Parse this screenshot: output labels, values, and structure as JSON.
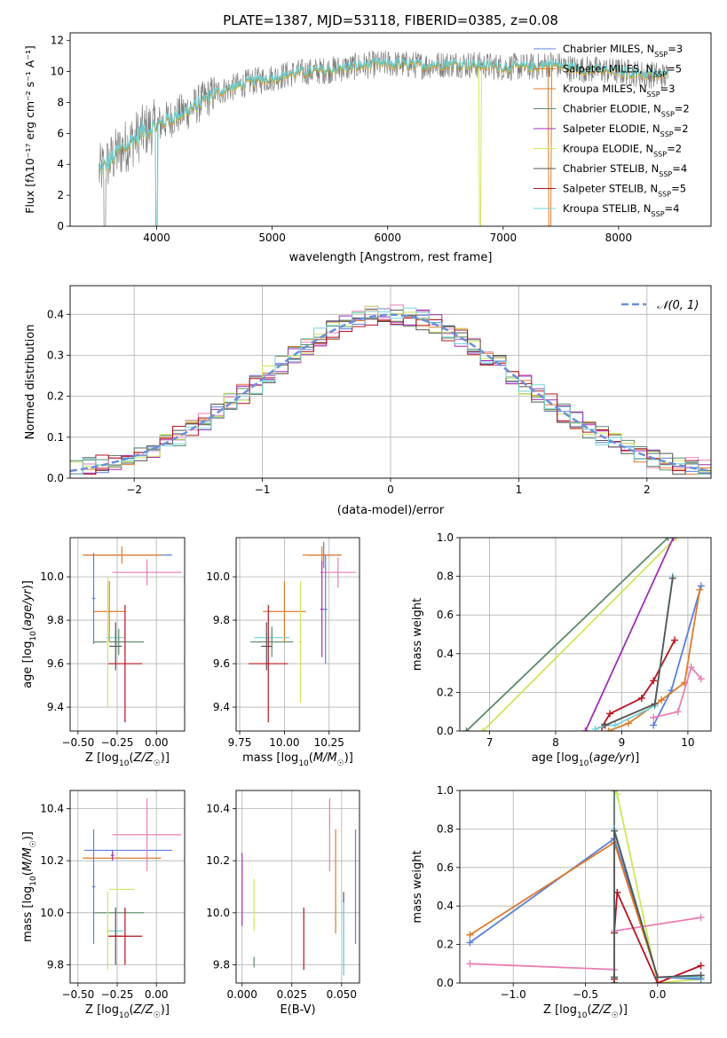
{
  "figure": {
    "title": "PLATE=1387, MJD=53118, FIBERID=0385, z=0.08"
  },
  "colors": {
    "chabrier_miles": "#5b7fdc",
    "salpeter_miles": "#e07a2a",
    "kroupa_miles": "#e87fb3",
    "chabrier_elodie": "#5a8a6a",
    "salpeter_elodie": "#9f2fb5",
    "kroupa_elodie": "#cde65a",
    "chabrier_stelib": "#555555",
    "salpeter_stelib": "#b8121f",
    "kroupa_stelib": "#73d3d8",
    "data": "#808080",
    "gaussian": "#6a8fd8",
    "grid": "#b0b0b0"
  },
  "chart_data": [
    {
      "id": "spectrum",
      "type": "line",
      "xlabel": "wavelength [Angstrom, rest frame]",
      "ylabel": "Flux [fλ10⁻¹⁷ erg cm⁻² s⁻¹ A⁻¹]",
      "xlim": [
        3250,
        8800
      ],
      "ylim": [
        0,
        12.5
      ],
      "xticks": [
        4000,
        5000,
        6000,
        7000,
        8000
      ],
      "yticks": [
        0,
        2,
        4,
        6,
        8,
        10,
        12
      ],
      "grid": false,
      "legend_position": "right",
      "legend": [
        {
          "name": "Chabrier MILES, N_SSP=3",
          "text": "Chabrier MILES, N",
          "n": "3",
          "color_key": "chabrier_miles"
        },
        {
          "name": "Salpeter MILES, N_SSP=5",
          "text": "Salpeter MILES, N",
          "n": "5",
          "color_key": "salpeter_miles"
        },
        {
          "name": "Kroupa MILES, N_SSP=3",
          "text": "Kroupa MILES, N",
          "n": "3",
          "color_key": "salpeter_miles"
        },
        {
          "name": "Chabrier ELODIE, N_SSP=2",
          "text": "Chabrier ELODIE, N",
          "n": "2",
          "color_key": "chabrier_elodie"
        },
        {
          "name": "Salpeter ELODIE, N_SSP=2",
          "text": "Salpeter ELODIE, N",
          "n": "2",
          "color_key": "salpeter_elodie"
        },
        {
          "name": "Kroupa ELODIE, N_SSP=2",
          "text": "Kroupa ELODIE, N",
          "n": "2",
          "color_key": "kroupa_elodie"
        },
        {
          "name": "Chabrier STELIB, N_SSP=4",
          "text": "Chabrier STELIB, N",
          "n": "4",
          "color_key": "chabrier_stelib"
        },
        {
          "name": "Salpeter STELIB, N_SSP=5",
          "text": "Salpeter STELIB, N",
          "n": "5",
          "color_key": "salpeter_stelib"
        },
        {
          "name": "Kroupa STELIB, N_SSP=4",
          "text": "Kroupa STELIB, N",
          "n": "4",
          "color_key": "kroupa_stelib"
        }
      ],
      "continuum": {
        "x": [
          3500,
          3700,
          3900,
          4000,
          4100,
          4300,
          4500,
          4800,
          5000,
          5200,
          5500,
          5800,
          6000,
          6300,
          6600,
          7000,
          7300,
          7400,
          7600,
          8000,
          8400
        ],
        "y": [
          3.5,
          5.0,
          6.2,
          6.5,
          6.9,
          7.6,
          8.6,
          9.3,
          9.6,
          9.9,
          10.1,
          10.4,
          10.5,
          10.4,
          10.5,
          10.3,
          10.3,
          10.5,
          10.2,
          10.0,
          9.7
        ]
      }
    },
    {
      "id": "residuals",
      "type": "histogram",
      "xlabel": "(data-model)/error",
      "ylabel": "Normed distribution",
      "xlim": [
        -2.5,
        2.5
      ],
      "ylim": [
        0,
        0.47
      ],
      "xticks": [
        -2,
        -1,
        0,
        1,
        2
      ],
      "yticks": [
        0.0,
        0.1,
        0.2,
        0.3,
        0.4
      ],
      "grid": true,
      "legend": [
        {
          "name": "N(0,1)",
          "text": "𝒩(0, 1)",
          "color_key": "gaussian",
          "style": "dashed"
        }
      ],
      "bin_width": 0.1
    },
    {
      "id": "age_vs_Z",
      "type": "errorbar",
      "xlabel": "Z [log10(Z/Z☉)]",
      "ylabel": "age [log10(age/yr)]",
      "xlim": [
        -0.55,
        0.18
      ],
      "ylim": [
        9.29,
        10.18
      ],
      "xticks": [
        -0.5,
        -0.25,
        0.0
      ],
      "xtick_labels": [
        "−0.50",
        "−0.25",
        "0.00"
      ],
      "yticks": [
        9.4,
        9.6,
        9.8,
        10.0
      ],
      "grid": true,
      "points": [
        {
          "color_key": "chabrier_miles",
          "x": -0.18,
          "xerr": 0.28,
          "y": 10.1,
          "yerr": 0.0
        },
        {
          "color_key": "salpeter_miles",
          "x": -0.22,
          "xerr": 0.25,
          "y": 10.1,
          "yerr": 0.04
        },
        {
          "color_key": "kroupa_miles",
          "x": -0.06,
          "xerr": 0.22,
          "y": 10.02,
          "yerr": 0.06
        },
        {
          "color_key": "salpeter_miles",
          "x": -0.3,
          "xerr": 0.1,
          "y": 9.84,
          "yerr": 0.14
        },
        {
          "color_key": "kroupa_stelib",
          "x": -0.26,
          "xerr": 0.06,
          "y": 9.72,
          "yerr": 0.03
        },
        {
          "color_key": "chabrier_elodie",
          "x": -0.24,
          "xerr": 0.16,
          "y": 9.7,
          "yerr": 0.06
        },
        {
          "color_key": "chabrier_stelib",
          "x": -0.26,
          "xerr": 0.04,
          "y": 9.68,
          "yerr": 0.11
        },
        {
          "color_key": "salpeter_stelib",
          "x": -0.2,
          "xerr": 0.11,
          "y": 9.6,
          "yerr": 0.27
        },
        {
          "color_key": "kroupa_elodie",
          "x": -0.31,
          "xerr": 0.01,
          "y": 9.7,
          "yerr": 0.3
        },
        {
          "color_key": "chabrier_miles",
          "x": -0.4,
          "xerr": 0.01,
          "y": 9.9,
          "yerr": 0.21
        }
      ]
    },
    {
      "id": "age_vs_mass",
      "type": "errorbar",
      "xlabel": "mass [log10(M/M☉)]",
      "ylabel": "",
      "xlim": [
        9.73,
        10.42
      ],
      "ylim": [
        9.29,
        10.18
      ],
      "xticks": [
        9.75,
        10.0,
        10.25
      ],
      "xtick_labels": [
        "9.75",
        "10.00",
        "10.25"
      ],
      "yticks": [
        9.4,
        9.6,
        9.8,
        10.0
      ],
      "grid": true,
      "points": [
        {
          "color_key": "chabrier_miles",
          "x": 10.22,
          "xerr": 0.09,
          "y": 10.1,
          "yerr": 0.06
        },
        {
          "color_key": "salpeter_miles",
          "x": 10.21,
          "xerr": 0.11,
          "y": 10.1,
          "yerr": 0.04
        },
        {
          "color_key": "kroupa_miles",
          "x": 10.3,
          "xerr": 0.1,
          "y": 10.02,
          "yerr": 0.07
        },
        {
          "color_key": "salpeter_miles",
          "x": 10.0,
          "xerr": 0.12,
          "y": 9.84,
          "yerr": 0.14
        },
        {
          "color_key": "kroupa_stelib",
          "x": 9.93,
          "xerr": 0.1,
          "y": 9.72,
          "yerr": 0.02
        },
        {
          "color_key": "chabrier_elodie",
          "x": 9.93,
          "xerr": 0.12,
          "y": 9.7,
          "yerr": 0.07
        },
        {
          "color_key": "chabrier_stelib",
          "x": 9.9,
          "xerr": 0.03,
          "y": 9.68,
          "yerr": 0.11
        },
        {
          "color_key": "salpeter_stelib",
          "x": 9.91,
          "xerr": 0.11,
          "y": 9.6,
          "yerr": 0.27
        },
        {
          "color_key": "kroupa_elodie",
          "x": 10.09,
          "xerr": 0.01,
          "y": 9.7,
          "yerr": 0.28
        },
        {
          "color_key": "salpeter_elodie",
          "x": 10.21,
          "xerr": 0.01,
          "y": 9.85,
          "yerr": 0.22
        },
        {
          "color_key": "chabrier_miles",
          "x": 10.23,
          "xerr": 0.01,
          "y": 9.85,
          "yerr": 0.25
        }
      ]
    },
    {
      "id": "weight_vs_age",
      "type": "line",
      "xlabel": "age [log10(age/yr)]",
      "ylabel": "mass weight",
      "xlim": [
        6.55,
        10.35
      ],
      "ylim": [
        0,
        1.0
      ],
      "xticks": [
        7,
        8,
        9,
        10
      ],
      "yticks": [
        0.0,
        0.2,
        0.4,
        0.6,
        0.8,
        1.0
      ],
      "grid": true,
      "series": [
        {
          "color_key": "chabrier_elodie",
          "x": [
            6.65,
            9.7
          ],
          "y": [
            0.0,
            1.0
          ]
        },
        {
          "color_key": "kroupa_elodie",
          "x": [
            6.9,
            9.82
          ],
          "y": [
            0.0,
            1.0
          ]
        },
        {
          "color_key": "salpeter_elodie",
          "x": [
            8.45,
            9.78
          ],
          "y": [
            0.0,
            1.0
          ]
        },
        {
          "color_key": "salpeter_stelib",
          "x": [
            8.7,
            8.82,
            9.3,
            9.48,
            9.8
          ],
          "y": [
            0.02,
            0.09,
            0.17,
            0.26,
            0.47
          ]
        },
        {
          "color_key": "chabrier_miles",
          "x": [
            9.48,
            9.75,
            10.2
          ],
          "y": [
            0.03,
            0.21,
            0.75
          ]
        },
        {
          "color_key": "salpeter_miles",
          "x": [
            8.8,
            9.1,
            9.6,
            9.95,
            10.18
          ],
          "y": [
            0.0,
            0.04,
            0.16,
            0.25,
            0.73
          ]
        },
        {
          "color_key": "kroupa_miles",
          "x": [
            9.48,
            9.85,
            10.05,
            10.2
          ],
          "y": [
            0.07,
            0.1,
            0.33,
            0.27
          ]
        },
        {
          "color_key": "kroupa_stelib",
          "x": [
            8.6,
            8.75,
            8.9,
            9.5,
            9.77
          ],
          "y": [
            0.01,
            0.03,
            0.03,
            0.13,
            0.8
          ]
        },
        {
          "color_key": "chabrier_stelib",
          "x": [
            8.75,
            9.5,
            9.77
          ],
          "y": [
            0.03,
            0.14,
            0.79
          ]
        }
      ]
    },
    {
      "id": "mass_vs_Z",
      "type": "errorbar",
      "xlabel": "Z [log10(Z/Z☉)]",
      "ylabel": "mass [log10(M/M☉)]",
      "xlim": [
        -0.55,
        0.18
      ],
      "ylim": [
        9.73,
        10.47
      ],
      "xticks": [
        -0.5,
        -0.25,
        0.0
      ],
      "xtick_labels": [
        "−0.50",
        "−0.25",
        "0.00"
      ],
      "yticks": [
        9.8,
        10.0,
        10.2,
        10.4
      ],
      "grid": true,
      "points": [
        {
          "color_key": "chabrier_miles",
          "x": -0.18,
          "xerr": 0.28,
          "y": 10.24,
          "yerr": 0.0
        },
        {
          "color_key": "salpeter_miles",
          "x": -0.22,
          "xerr": 0.25,
          "y": 10.21,
          "yerr": 0.0
        },
        {
          "color_key": "kroupa_miles",
          "x": -0.06,
          "xerr": 0.22,
          "y": 10.3,
          "yerr": 0.14
        },
        {
          "color_key": "salpeter_elodie",
          "x": -0.28,
          "xerr": 0.01,
          "y": 10.22,
          "yerr": 0.02
        },
        {
          "color_key": "kroupa_elodie",
          "x": -0.22,
          "xerr": 0.08,
          "y": 10.09,
          "yerr": 0.0
        },
        {
          "color_key": "chabrier_elodie",
          "x": -0.24,
          "xerr": 0.16,
          "y": 10.0,
          "yerr": 0.0
        },
        {
          "color_key": "kroupa_stelib",
          "x": -0.26,
          "xerr": 0.05,
          "y": 9.93,
          "yerr": 0.0
        },
        {
          "color_key": "chabrier_stelib",
          "x": -0.26,
          "xerr": 0.04,
          "y": 9.91,
          "yerr": 0.11
        },
        {
          "color_key": "salpeter_stelib",
          "x": -0.2,
          "xerr": 0.11,
          "y": 9.91,
          "yerr": 0.11
        },
        {
          "color_key": "kroupa_elodie",
          "x": -0.31,
          "xerr": 0.01,
          "y": 9.93,
          "yerr": 0.15
        },
        {
          "color_key": "chabrier_miles",
          "x": -0.4,
          "xerr": 0.01,
          "y": 10.1,
          "yerr": 0.22
        }
      ]
    },
    {
      "id": "mass_vs_EBV",
      "type": "errorbar",
      "xlabel": "E(B-V)",
      "ylabel": "",
      "xlim": [
        -0.003,
        0.059
      ],
      "ylim": [
        9.73,
        10.47
      ],
      "xticks": [
        0.0,
        0.025,
        0.05
      ],
      "xtick_labels": [
        "0.000",
        "0.025",
        "0.050"
      ],
      "yticks": [
        9.8,
        10.0,
        10.2,
        10.4
      ],
      "grid": true,
      "points": [
        {
          "color_key": "salpeter_elodie",
          "x": 0.0,
          "xerr": 0.0,
          "y": 10.09,
          "yerr": 0.14
        },
        {
          "color_key": "kroupa_elodie",
          "x": 0.006,
          "xerr": 0.0,
          "y": 10.03,
          "yerr": 0.1
        },
        {
          "color_key": "chabrier_elodie",
          "x": 0.006,
          "xerr": 0.0,
          "y": 9.81,
          "yerr": 0.02
        },
        {
          "color_key": "salpeter_stelib",
          "x": 0.031,
          "xerr": 0.0,
          "y": 9.9,
          "yerr": 0.12
        },
        {
          "color_key": "kroupa_miles",
          "x": 0.044,
          "xerr": 0.0,
          "y": 10.3,
          "yerr": 0.14
        },
        {
          "color_key": "salpeter_miles",
          "x": 0.047,
          "xerr": 0.0,
          "y": 10.12,
          "yerr": 0.2
        },
        {
          "color_key": "chabrier_stelib",
          "x": 0.051,
          "xerr": 0.0,
          "y": 9.92,
          "yerr": 0.16
        },
        {
          "color_key": "kroupa_stelib",
          "x": 0.051,
          "xerr": 0.0,
          "y": 9.9,
          "yerr": 0.14
        },
        {
          "color_key": "chabrier_miles",
          "x": 0.057,
          "xerr": 0.0,
          "y": 10.1,
          "yerr": 0.22
        }
      ]
    },
    {
      "id": "weight_vs_Z",
      "type": "line",
      "xlabel": "Z [log10(Z/Z☉)]",
      "ylabel": "mass weight",
      "xlim": [
        -1.37,
        0.37
      ],
      "ylim": [
        0,
        1.0
      ],
      "xticks": [
        -1.0,
        -0.5,
        0.0
      ],
      "xtick_labels": [
        "−1.0",
        "−0.5",
        "0.0"
      ],
      "yticks": [
        0.0,
        0.2,
        0.4,
        0.6,
        0.8,
        1.0
      ],
      "grid": true,
      "series": [
        {
          "color_key": "salpeter_elodie",
          "x": [
            -0.3,
            -0.3
          ],
          "y": [
            0.0,
            1.0
          ]
        },
        {
          "color_key": "kroupa_elodie",
          "x": [
            -0.3,
            -0.28,
            0.0,
            0.3
          ],
          "y": [
            1.0,
            0.98,
            0.0,
            0.02
          ]
        },
        {
          "color_key": "chabrier_elodie",
          "x": [
            -0.3,
            -0.3
          ],
          "y": [
            0.0,
            1.0
          ]
        },
        {
          "color_key": "chabrier_miles",
          "x": [
            -1.3,
            -0.3,
            0.0,
            0.3
          ],
          "y": [
            0.21,
            0.75,
            0.03,
            0.02
          ]
        },
        {
          "color_key": "salpeter_miles",
          "x": [
            -1.3,
            -0.3,
            0.0,
            0.3
          ],
          "y": [
            0.25,
            0.73,
            0.03,
            0.03
          ]
        },
        {
          "color_key": "kroupa_miles",
          "x": [
            -1.3,
            -0.3,
            -0.3,
            0.3
          ],
          "y": [
            0.1,
            0.07,
            0.27,
            0.34
          ]
        },
        {
          "color_key": "salpeter_stelib",
          "x": [
            -0.3,
            -0.3,
            -0.28,
            0.0,
            0.3
          ],
          "y": [
            0.02,
            0.26,
            0.47,
            0.0,
            0.09
          ]
        },
        {
          "color_key": "kroupa_stelib",
          "x": [
            -0.3,
            -0.3,
            0.0,
            0.3
          ],
          "y": [
            0.03,
            0.8,
            0.03,
            0.03
          ]
        },
        {
          "color_key": "chabrier_stelib",
          "x": [
            -0.3,
            -0.3,
            0.0,
            0.3
          ],
          "y": [
            0.03,
            0.79,
            0.03,
            0.04
          ]
        }
      ]
    }
  ]
}
